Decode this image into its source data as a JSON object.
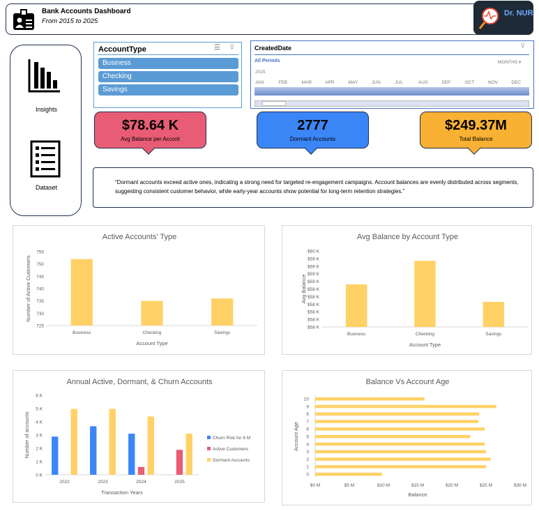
{
  "header": {
    "title": "Bank Accounts Dashboard",
    "subtitle": "From 2015 to 2025",
    "logo_text": "Dr. NUR"
  },
  "nav": {
    "items": [
      {
        "label": "Insights",
        "icon": "bar-chart-icon"
      },
      {
        "label": "Dataset",
        "icon": "list-icon"
      }
    ]
  },
  "slicer": {
    "title": "AccountType",
    "items": [
      "Business",
      "Checking",
      "Savings"
    ]
  },
  "timeline": {
    "title": "CreatedDate",
    "period": "All Periods",
    "level": "MONTHS",
    "year": "2015",
    "months": [
      "JAN",
      "FEB",
      "MAR",
      "APR",
      "MAY",
      "JUN",
      "JUL",
      "AUG",
      "SEP",
      "OCT",
      "NOV",
      "DEC"
    ]
  },
  "kpis": [
    {
      "value": "$78.64 K",
      "label": "Avg Balance per Accont",
      "color": "#e85d75"
    },
    {
      "value": "2777",
      "label": "Dormant Accounts",
      "color": "#3b86f7"
    },
    {
      "value": "$249.37M",
      "label": "Total Balance",
      "color": "#f8b133"
    }
  ],
  "note": "“Dormant accounts exceed active ones, indicating a strong need for targeted re-engagement campaigns. Account balances are evenly distributed across segments, suggesting consistent customer behavior, while early-year accounts show potential for long-term retention strategies.”",
  "chart_data": [
    {
      "type": "bar",
      "title": "Active Accounts' Type",
      "xlabel": "Account Type",
      "ylabel": "Number of Active Customers",
      "categories": [
        "Business",
        "Checking",
        "Savings"
      ],
      "values": [
        752,
        735,
        736
      ],
      "ylim": [
        725,
        755
      ],
      "ticks": [
        "725",
        "730",
        "735",
        "740",
        "745",
        "750",
        "755"
      ],
      "color": "#ffd166"
    },
    {
      "type": "bar",
      "title": "Avg Balance by Account Type",
      "xlabel": "Account Type",
      "ylabel": "Avg Balance",
      "categories": [
        "Business",
        "Checking",
        "Savings"
      ],
      "values": [
        58960,
        59270,
        58730
      ],
      "ylim": [
        58400,
        59400
      ],
      "ticks": [
        "$58 K",
        "$58 K",
        "$58 K",
        "$58 K",
        "$58 K",
        "$58 K",
        "$59 K",
        "$59 K",
        "$59 K",
        "$59 K",
        "$60 K"
      ],
      "color": "#ffd166"
    },
    {
      "type": "bar",
      "title": "Annual Active, Dormant, & Churn Accounts",
      "xlabel": "Transaction Years",
      "ylabel": "Number of accounts",
      "categories": [
        "2022",
        "2023",
        "2024",
        "2025"
      ],
      "ylim": [
        0,
        6000
      ],
      "ticks": [
        "0 K",
        "1 K",
        "2 K",
        "3 K",
        "4 K",
        "5 K",
        "6 K"
      ],
      "legend": "right",
      "series": [
        {
          "name": "Churn Risk for 6 M",
          "color": "#3b86f7",
          "values": [
            2880,
            3660,
            3100,
            null
          ]
        },
        {
          "name": "Active Customers",
          "color": "#e85d75",
          "values": [
            null,
            null,
            590,
            1880
          ]
        },
        {
          "name": "Dormant Accounts",
          "color": "#ffd166",
          "values": [
            4970,
            4970,
            4400,
            3100
          ]
        }
      ]
    },
    {
      "type": "bar",
      "orientation": "horizontal",
      "title": "Balance Vs Account Age",
      "xlabel": "Balance",
      "ylabel": "Account Age",
      "categories": [
        "0",
        "1",
        "2",
        "3",
        "4",
        "5",
        "6",
        "7",
        "8",
        "9",
        "10"
      ],
      "values": [
        9.8,
        25.0,
        25.7,
        25.0,
        24.8,
        22.7,
        24.8,
        23.9,
        24.0,
        26.5,
        16.0
      ],
      "unit": "$M",
      "xlim": [
        0,
        30
      ],
      "ticks": [
        "$0 M",
        "$5 M",
        "$10 M",
        "$15 M",
        "$20 M",
        "$25 M",
        "$30 M"
      ],
      "color": "#ffd166"
    }
  ]
}
